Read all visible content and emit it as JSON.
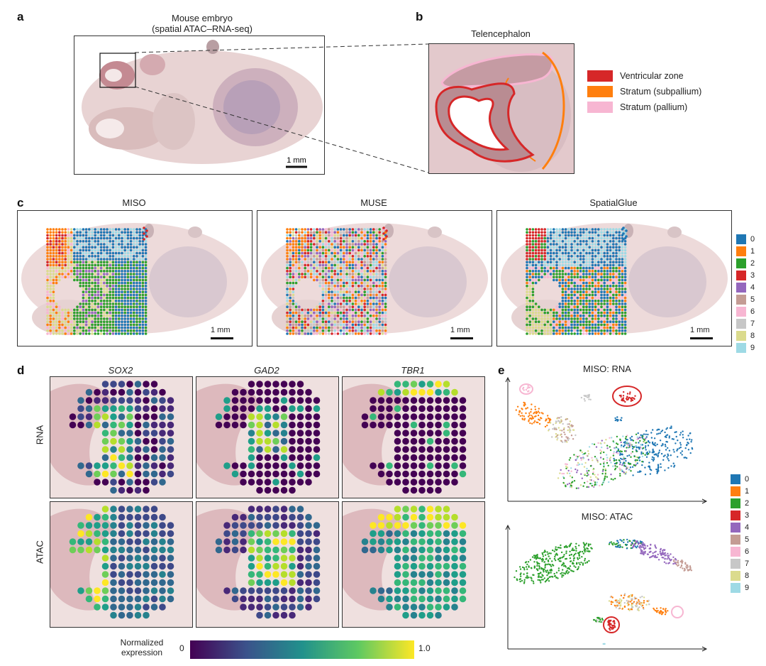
{
  "panels": {
    "a": {
      "letter": "a",
      "title_line1": "Mouse embryo",
      "title_line2": "(spatial ATAC–RNA-seq)",
      "scale": "1 mm"
    },
    "b": {
      "letter": "b",
      "title": "Telencephalon",
      "legend": [
        {
          "label": "Ventricular zone",
          "color": "#d62728"
        },
        {
          "label": "Stratum (subpallium)",
          "color": "#ff7f0e"
        },
        {
          "label": "Stratum (pallium)",
          "color": "#f7b6d2"
        }
      ]
    },
    "c": {
      "letter": "c",
      "methods": [
        {
          "title": "MISO",
          "scale": "1 mm"
        },
        {
          "title": "MUSE",
          "scale": "1 mm"
        },
        {
          "title": "SpatialGlue",
          "scale": "1 mm"
        }
      ]
    },
    "d": {
      "letter": "d",
      "genes": [
        "SOX2",
        "GAD2",
        "TBR1"
      ],
      "rows": [
        "RNA",
        "ATAC"
      ],
      "colorbar": {
        "label_line1": "Normalized",
        "label_line2": "expression",
        "min": "0",
        "max": "1.0"
      }
    },
    "e": {
      "letter": "e",
      "titles": [
        "MISO: RNA",
        "MISO: ATAC"
      ]
    }
  },
  "clusters": [
    {
      "label": "0",
      "color": "#1f77b4"
    },
    {
      "label": "1",
      "color": "#ff7f0e"
    },
    {
      "label": "2",
      "color": "#2ca02c"
    },
    {
      "label": "3",
      "color": "#d62728"
    },
    {
      "label": "4",
      "color": "#9467bd"
    },
    {
      "label": "5",
      "color": "#c49c94"
    },
    {
      "label": "6",
      "color": "#f7b6d2"
    },
    {
      "label": "7",
      "color": "#c7c7c7"
    },
    {
      "label": "8",
      "color": "#dbdb8d"
    },
    {
      "label": "9",
      "color": "#9edae5"
    }
  ],
  "colors": {
    "tissue": "#d9b8b8",
    "tissue_dark": "#b88f93",
    "viridis_low": "#440154",
    "viridis_high": "#fde725"
  }
}
